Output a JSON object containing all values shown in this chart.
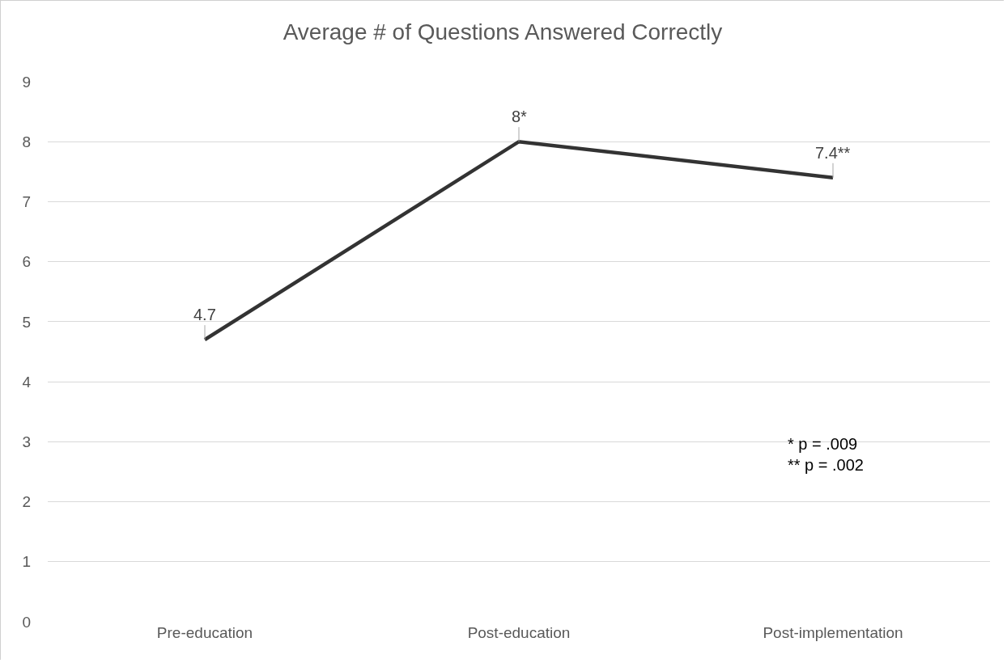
{
  "chart_data": {
    "type": "line",
    "title": "Average # of Questions Answered Correctly",
    "categories": [
      "Pre-education",
      "Post-education",
      "Post-implementation"
    ],
    "series": [
      {
        "color": "#333333",
        "values": [
          4.7,
          8,
          7.4
        ],
        "value_labels": [
          "4.7",
          "8*",
          "7.4**"
        ]
      }
    ],
    "ylim": [
      0,
      9
    ],
    "yticks": [
      0,
      1,
      2,
      3,
      4,
      5,
      6,
      7,
      8,
      9
    ],
    "grid": "y",
    "marker": "none",
    "line_style": "solid",
    "annotations": [
      "* p = .009",
      "** p = .002"
    ]
  }
}
